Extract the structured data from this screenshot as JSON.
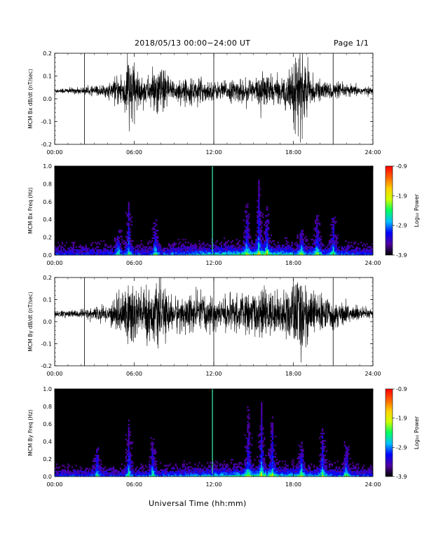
{
  "header": {
    "title": "2018/05/13  00:00−24:00 UT",
    "page": "Page 1/1"
  },
  "xaxis_title": "Universal Time (hh:mm)",
  "colors": {
    "waveform": "#000000",
    "panel_bg": "#000000",
    "axis": "#000000"
  },
  "colorbar": {
    "label": "Log₁₀ Power",
    "ticks": [
      "-0.9",
      "-1.9",
      "-2.9",
      "-3.9"
    ],
    "range": [
      -3.9,
      -0.9
    ],
    "stops": [
      "#000000",
      "#5000a0",
      "#0000ff",
      "#00c0ff",
      "#00ff60",
      "#d0ff00",
      "#ffd000",
      "#ff6000",
      "#ff0000"
    ]
  },
  "chart_data": [
    {
      "type": "line",
      "ylabel": "MCM Bx dB/dt (nT/sec)",
      "xlim": [
        0,
        24
      ],
      "ylim": [
        -0.2,
        0.2
      ],
      "xticks": [
        "00:00",
        "06:00",
        "12:00",
        "18:00",
        "24:00"
      ],
      "yticks": [
        "0.2",
        "0.1",
        "0.0",
        "-0.1",
        "-0.2"
      ],
      "vlines": [
        2.25,
        12,
        21
      ],
      "baseline": 0.035,
      "activity": [
        {
          "t": 0,
          "amp": 0.012
        },
        {
          "t": 2,
          "amp": 0.015
        },
        {
          "t": 4,
          "amp": 0.03
        },
        {
          "t": 5.3,
          "amp": 0.1
        },
        {
          "t": 5.7,
          "amp": 0.2
        },
        {
          "t": 6.2,
          "amp": 0.08
        },
        {
          "t": 7,
          "amp": 0.06
        },
        {
          "t": 7.8,
          "amp": 0.12
        },
        {
          "t": 9,
          "amp": 0.05
        },
        {
          "t": 11,
          "amp": 0.06
        },
        {
          "t": 12,
          "amp": 0.04
        },
        {
          "t": 15,
          "amp": 0.06
        },
        {
          "t": 16,
          "amp": 0.08
        },
        {
          "t": 17,
          "amp": 0.05
        },
        {
          "t": 18.5,
          "amp": 0.2
        },
        {
          "t": 19.5,
          "amp": 0.05
        },
        {
          "t": 22,
          "amp": 0.03
        },
        {
          "t": 24,
          "amp": 0.015
        }
      ]
    },
    {
      "type": "heatmap",
      "ylabel": "MCM Bx Freq (Hz)",
      "xlim": [
        0,
        24
      ],
      "ylim": [
        0,
        1.0
      ],
      "xticks": [
        "00:00",
        "06:00",
        "12:00",
        "18:00",
        "24:00"
      ],
      "yticks": [
        "1.0",
        "0.8",
        "0.6",
        "0.4",
        "0.2",
        "0.0"
      ],
      "bright_lines": [
        11.9
      ],
      "events": [
        {
          "t": 4.8,
          "fmax": 0.3
        },
        {
          "t": 5.6,
          "fmax": 0.6
        },
        {
          "t": 7.6,
          "fmax": 0.4
        },
        {
          "t": 14.5,
          "fmax": 0.6
        },
        {
          "t": 15.4,
          "fmax": 0.85
        },
        {
          "t": 16.0,
          "fmax": 0.55
        },
        {
          "t": 18.6,
          "fmax": 0.3
        },
        {
          "t": 19.8,
          "fmax": 0.45
        },
        {
          "t": 21.0,
          "fmax": 0.45
        }
      ]
    },
    {
      "type": "line",
      "ylabel": "MCM By dB/dt (nT/sec)",
      "xlim": [
        0,
        24
      ],
      "ylim": [
        -0.2,
        0.2
      ],
      "xticks": [
        "00:00",
        "06:00",
        "12:00",
        "18:00",
        "24:00"
      ],
      "yticks": [
        "0.2",
        "0.1",
        "0.0",
        "-0.1",
        "-0.2"
      ],
      "vlines": [
        2.25,
        12,
        21
      ],
      "baseline": 0.035,
      "activity": [
        {
          "t": 0,
          "amp": 0.015
        },
        {
          "t": 2,
          "amp": 0.02
        },
        {
          "t": 4,
          "amp": 0.04
        },
        {
          "t": 5,
          "amp": 0.1
        },
        {
          "t": 5.7,
          "amp": 0.2
        },
        {
          "t": 6.5,
          "amp": 0.12
        },
        {
          "t": 7.6,
          "amp": 0.14
        },
        {
          "t": 9,
          "amp": 0.08
        },
        {
          "t": 11,
          "amp": 0.1
        },
        {
          "t": 12,
          "amp": 0.07
        },
        {
          "t": 15,
          "amp": 0.1
        },
        {
          "t": 16,
          "amp": 0.12
        },
        {
          "t": 17,
          "amp": 0.08
        },
        {
          "t": 18.5,
          "amp": 0.2
        },
        {
          "t": 19.5,
          "amp": 0.1
        },
        {
          "t": 22,
          "amp": 0.05
        },
        {
          "t": 24,
          "amp": 0.02
        }
      ]
    },
    {
      "type": "heatmap",
      "ylabel": "MCM By Freq (Hz)",
      "xlim": [
        0,
        24
      ],
      "ylim": [
        0,
        1.0
      ],
      "xticks": [
        "00:00",
        "06:00",
        "12:00",
        "18:00",
        "24:00"
      ],
      "yticks": [
        "1.0",
        "0.8",
        "0.6",
        "0.4",
        "0.2",
        "0.0"
      ],
      "bright_lines": [
        11.9
      ],
      "events": [
        {
          "t": 3.2,
          "fmax": 0.35
        },
        {
          "t": 5.6,
          "fmax": 0.65
        },
        {
          "t": 7.4,
          "fmax": 0.45
        },
        {
          "t": 14.6,
          "fmax": 0.8
        },
        {
          "t": 15.6,
          "fmax": 0.85
        },
        {
          "t": 16.4,
          "fmax": 0.7
        },
        {
          "t": 18.6,
          "fmax": 0.4
        },
        {
          "t": 20.2,
          "fmax": 0.55
        },
        {
          "t": 22.0,
          "fmax": 0.4
        }
      ]
    }
  ]
}
